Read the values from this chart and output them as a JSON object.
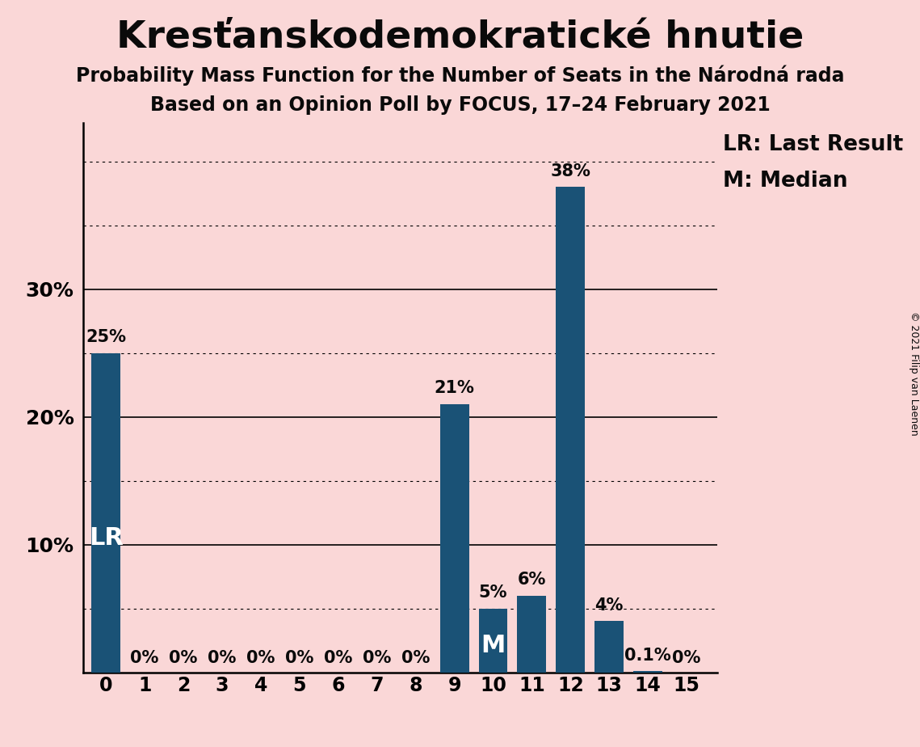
{
  "title": "Kresťanskodemokratické hnutie",
  "subtitle1": "Probability Mass Function for the Number of Seats in the Národná rada",
  "subtitle2": "Based on an Opinion Poll by FOCUS, 17–24 February 2021",
  "copyright_text": "© 2021 Filip van Laenen",
  "categories": [
    0,
    1,
    2,
    3,
    4,
    5,
    6,
    7,
    8,
    9,
    10,
    11,
    12,
    13,
    14,
    15
  ],
  "values": [
    25,
    0,
    0,
    0,
    0,
    0,
    0,
    0,
    0,
    21,
    5,
    6,
    38,
    4,
    0.1,
    0
  ],
  "bar_labels": [
    "25%",
    "0%",
    "0%",
    "0%",
    "0%",
    "0%",
    "0%",
    "0%",
    "0%",
    "21%",
    "5%",
    "6%",
    "38%",
    "4%",
    "0.1%",
    "0%"
  ],
  "bar_color": "#1a5276",
  "background_color": "#fad7d7",
  "text_color": "#0a0a0a",
  "white_text_color": "#ffffff",
  "lr_bar_idx": 0,
  "median_bar_idx": 10,
  "major_yticks": [
    10,
    20,
    30
  ],
  "minor_yticks": [
    5,
    15,
    25,
    35,
    40
  ],
  "ylim": [
    0,
    43
  ],
  "legend_lr": "LR: Last Result",
  "legend_m": "M: Median",
  "title_fontsize": 34,
  "subtitle_fontsize": 17,
  "tick_fontsize": 17,
  "legend_fontsize": 19,
  "bar_label_fontsize": 15,
  "lr_m_fontsize": 22,
  "copyright_fontsize": 9,
  "ytick_label_fontsize": 18
}
